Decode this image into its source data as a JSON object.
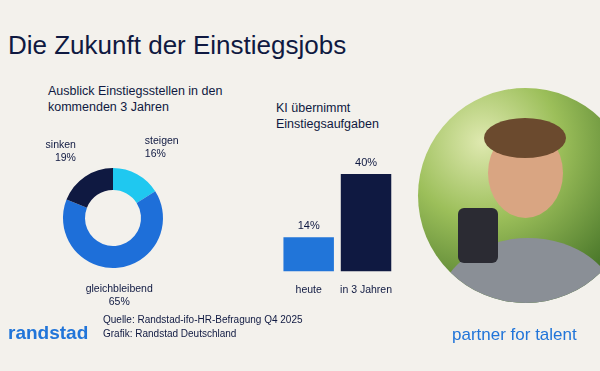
{
  "title": "Die Zukunft der Einstiegsjobs",
  "chart_data": [
    {
      "type": "doughnut",
      "title": "Ausblick Einstiegsstellen in den kommenden 3 Jahren",
      "categories": [
        "steigen",
        "gleichbleibend",
        "sinken"
      ],
      "values": [
        16,
        65,
        19
      ],
      "value_labels": [
        "16%",
        "65%",
        "19%"
      ],
      "colors": [
        "#1fc8f0",
        "#1e6fd9",
        "#0f1941"
      ],
      "data_labels": true,
      "legend": false
    },
    {
      "type": "bar",
      "title": "KI übernimmt Einstiegsaufgaben",
      "categories": [
        "heute",
        "in 3 Jahren"
      ],
      "values": [
        14,
        40
      ],
      "value_labels": [
        "14%",
        "40%"
      ],
      "colors": [
        "#2175d9",
        "#0f1941"
      ],
      "ylim": [
        0,
        40
      ],
      "data_labels": true,
      "tick_labels": "x",
      "grid": false,
      "legend": false
    }
  ],
  "source": [
    "Quelle: Randstad-ifo-HR-Befragung Q4 2025",
    "Grafik: Randstad Deutschland"
  ],
  "brand": "randstad",
  "tagline": "partner for talent"
}
